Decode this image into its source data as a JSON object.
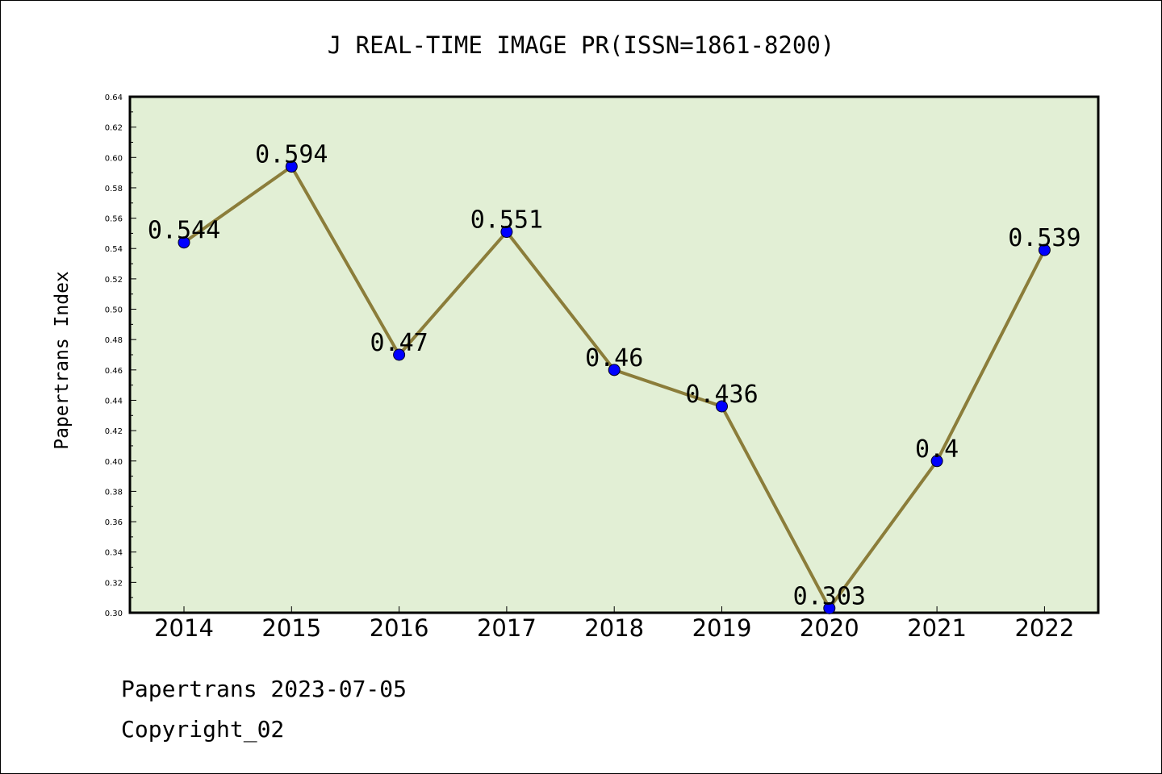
{
  "chart_data": {
    "type": "line",
    "title": "J REAL-TIME IMAGE PR(ISSN=1861-8200)",
    "xlabel": "",
    "ylabel": "Papertrans Index",
    "categories": [
      "2014",
      "2015",
      "2016",
      "2017",
      "2018",
      "2019",
      "2020",
      "2021",
      "2022"
    ],
    "values": [
      0.544,
      0.594,
      0.47,
      0.551,
      0.46,
      0.436,
      0.303,
      0.4,
      0.539
    ],
    "data_labels": [
      "0.544",
      "0.594",
      "0.47",
      "0.551",
      "0.46",
      "0.436",
      "0.303",
      "0.4",
      "0.539"
    ],
    "ylim": [
      0.3,
      0.64
    ],
    "yticks": [
      "0.30",
      "0.32",
      "0.34",
      "0.36",
      "0.38",
      "0.40",
      "0.42",
      "0.44",
      "0.46",
      "0.48",
      "0.50",
      "0.52",
      "0.54",
      "0.56",
      "0.58",
      "0.60",
      "0.62",
      "0.64"
    ],
    "grid": false,
    "legend": "none",
    "colors": {
      "plot_background": "#e2efd5",
      "line": "#8b7d3a",
      "marker": "#0000ff",
      "axes": "#000000"
    }
  },
  "footer": {
    "date_line": "Papertrans 2023-07-05",
    "copyright": "Copyright_02"
  }
}
